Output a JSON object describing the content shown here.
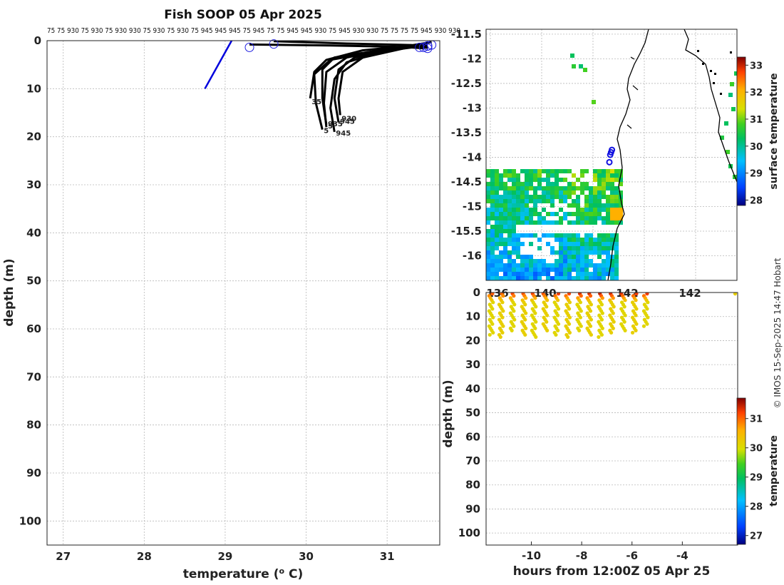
{
  "chart_data": [
    {
      "panel": "profiles",
      "type": "line",
      "title": "Fish SOOP 05 Apr 2025",
      "xlabel": "temperature (",
      "xlabel_sup": "o",
      "xlabel_end": " C)",
      "ylabel": "depth (m)",
      "xlim": [
        26.8,
        31.65
      ],
      "ylim": [
        105,
        0
      ],
      "xticks": [
        27,
        28,
        29,
        30,
        31
      ],
      "yticks": [
        0,
        10,
        20,
        30,
        40,
        50,
        60,
        70,
        80,
        90,
        100
      ],
      "grid": true,
      "gauge_labels": "75 75 930 75 930 75 930 930 75 930 75 930 75 945 945 945 75 945 75 75 945 945 930 75 945 930 930 75 75 75 75 945 930 930",
      "end_labels": [
        "935",
        "5",
        "35",
        "945",
        "945",
        "930",
        "5"
      ],
      "series": [
        {
          "color": "#0000dd",
          "x": [
            28.75,
            29.08
          ],
          "y": [
            10,
            0
          ]
        },
        {
          "color": "#000000",
          "x": [
            29.3,
            30.3,
            31.2,
            31.45
          ],
          "y": [
            0.8,
            1.0,
            1.3,
            1.6
          ]
        },
        {
          "color": "#000000",
          "x": [
            29.6,
            30.5,
            31.3,
            31.5
          ],
          "y": [
            0.1,
            0.6,
            0.9,
            1.5
          ]
        },
        {
          "color": "#000000",
          "x": [
            31.5,
            30.9,
            30.35,
            30.2,
            30.2,
            30.25
          ],
          "y": [
            0.5,
            2.0,
            3.5,
            6.0,
            12.0,
            17.5
          ]
        },
        {
          "color": "#000000",
          "x": [
            31.5,
            30.8,
            30.3,
            30.1,
            30.12,
            30.2
          ],
          "y": [
            1.0,
            2.5,
            4.0,
            7.0,
            13.0,
            18.5
          ]
        },
        {
          "color": "#000000",
          "x": [
            31.45,
            30.7,
            30.25,
            30.1,
            30.05
          ],
          "y": [
            0.8,
            2.0,
            4.0,
            6.5,
            12.0
          ]
        },
        {
          "color": "#000000",
          "x": [
            31.5,
            31.0,
            30.6,
            30.4,
            30.35,
            30.4
          ],
          "y": [
            0.5,
            2.0,
            3.5,
            6.0,
            12.0,
            17.0
          ]
        },
        {
          "color": "#000000",
          "x": [
            31.4,
            30.9,
            30.5,
            30.35,
            30.3,
            30.35
          ],
          "y": [
            0.8,
            2.5,
            4.5,
            8.0,
            14.0,
            19.0
          ]
        },
        {
          "color": "#000000",
          "x": [
            31.5,
            31.1,
            30.7,
            30.45,
            30.4,
            30.42
          ],
          "y": [
            0.5,
            2.0,
            3.5,
            6.5,
            12.0,
            15.5
          ]
        },
        {
          "color": "#000000",
          "x": [
            31.55,
            31.0,
            30.5,
            30.25,
            30.22,
            30.25
          ],
          "y": [
            0.3,
            1.8,
            3.5,
            6.5,
            13.0,
            18.0
          ]
        }
      ]
    },
    {
      "panel": "map",
      "type": "heatmap",
      "yticks": [
        -11.5,
        -12,
        -12.5,
        -13,
        -13.5,
        -14,
        -14.5,
        -15,
        -15.5,
        -16
      ],
      "ytick_labels": [
        "-11.5",
        "-12",
        "-12.5",
        "-13",
        "-13.5",
        "-14",
        "-14.5",
        "-15",
        "-15.5",
        "-16"
      ],
      "xtick_labels": [
        "136",
        "140",
        "142",
        "142"
      ],
      "ylim": [
        -16.5,
        -11.4
      ],
      "colorbar_label": "surface temperature",
      "colorbar_ticks": [
        28,
        29,
        30,
        31,
        32,
        33
      ],
      "colorbar_range": [
        27.8,
        33.3
      ],
      "track_points": [
        {
          "lat": -14.1,
          "marker": "circle"
        },
        {
          "lat": -13.95,
          "marker": "circle"
        },
        {
          "lat": -13.9,
          "marker": "circle"
        },
        {
          "lat": -13.85,
          "marker": "circle"
        }
      ]
    },
    {
      "panel": "time_depth",
      "type": "scatter",
      "xlabel": "hours from 12:00Z 05 Apr 25",
      "ylabel": "depth (m)",
      "xlim": [
        -11.8,
        -1.8
      ],
      "ylim": [
        105,
        0
      ],
      "xticks": [
        -10,
        -8,
        -6,
        -4
      ],
      "xtick_labels": [
        "-10",
        "-8",
        "-6",
        "-4"
      ],
      "yticks": [
        0,
        10,
        20,
        30,
        40,
        50,
        60,
        70,
        80,
        90,
        100
      ],
      "colorbar_label": "temperature",
      "colorbar_ticks": [
        27,
        28,
        29,
        30,
        31
      ],
      "colorbar_range": [
        26.7,
        31.7
      ],
      "casts": [
        {
          "x": -11.6,
          "zmax": 18.0,
          "tsurf": 31.2,
          "tdeep": 30.1
        },
        {
          "x": -11.2,
          "zmax": 18.5,
          "tsurf": 31.1,
          "tdeep": 30.2
        },
        {
          "x": -10.75,
          "zmax": 16.5,
          "tsurf": 31.3,
          "tdeep": 30.1
        },
        {
          "x": -10.3,
          "zmax": 18.0,
          "tsurf": 31.2,
          "tdeep": 30.2
        },
        {
          "x": -9.9,
          "zmax": 18.5,
          "tsurf": 31.3,
          "tdeep": 30.1
        },
        {
          "x": -9.45,
          "zmax": 16.0,
          "tsurf": 31.2,
          "tdeep": 30.2
        },
        {
          "x": -9.0,
          "zmax": 18.0,
          "tsurf": 31.4,
          "tdeep": 30.1
        },
        {
          "x": -8.55,
          "zmax": 18.5,
          "tsurf": 31.3,
          "tdeep": 30.2
        },
        {
          "x": -8.1,
          "zmax": 16.5,
          "tsurf": 31.5,
          "tdeep": 30.1
        },
        {
          "x": -7.7,
          "zmax": 18.0,
          "tsurf": 31.5,
          "tdeep": 30.2
        },
        {
          "x": -7.25,
          "zmax": 18.5,
          "tsurf": 31.6,
          "tdeep": 30.1
        },
        {
          "x": -6.8,
          "zmax": 17.5,
          "tsurf": 31.5,
          "tdeep": 30.2
        },
        {
          "x": -6.35,
          "zmax": 16.0,
          "tsurf": 31.5,
          "tdeep": 30.1
        },
        {
          "x": -5.9,
          "zmax": 17.0,
          "tsurf": 31.4,
          "tdeep": 30.2
        },
        {
          "x": -5.45,
          "zmax": 14.5,
          "tsurf": 31.4,
          "tdeep": 30.1
        }
      ],
      "extra_point": {
        "x": -1.9,
        "depth": 0.5,
        "temp": 30.2
      }
    }
  ],
  "credit": "© IMOS 15-Sep-2025 14:47 Hobart"
}
